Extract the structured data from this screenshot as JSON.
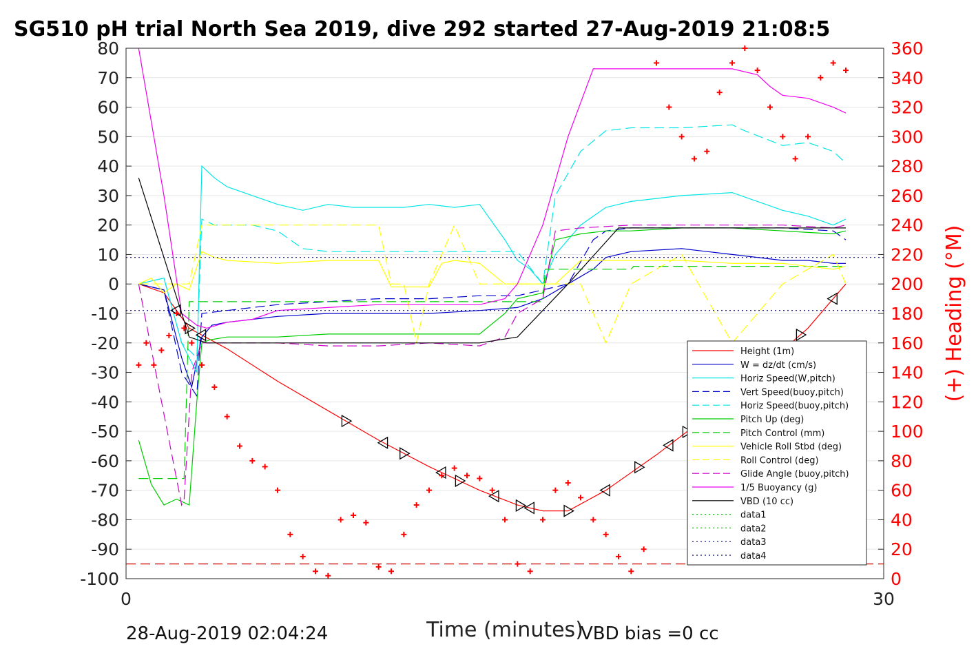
{
  "title": "SG510 pH trial North Sea 2019, dive 292 started 27-Aug-2019 21:08:5",
  "footer_left": "28-Aug-2019 02:04:24",
  "footer_right": "VBD bias =0 cc",
  "colors": {
    "height": "#ff0000",
    "w": "#0000cc",
    "hspeed_w": "#00e5e5",
    "vert_buoy": "#0000cc",
    "hspeed_buoy": "#00e5e5",
    "pitch": "#00cc00",
    "pitch_ctl": "#00cc00",
    "roll": "#ffff00",
    "roll_ctl": "#ffff00",
    "glide": "#cc00cc",
    "buoy": "#ee00ee",
    "vbd": "#000000",
    "heading": "#ff0000",
    "data12": "#00cc00",
    "data34": "#000080"
  },
  "chart_data": {
    "type": "line",
    "title": "SG510 pH trial North Sea 2019, dive 292 started 27-Aug-2019 21:08:5",
    "xlabel": "Time (minutes)",
    "ylabel": "",
    "ylabel_right": "(+) Heading (°M)",
    "xlim": [
      0,
      30
    ],
    "ylim": [
      -100,
      80
    ],
    "ylim_right": [
      0,
      360
    ],
    "x_ticks": [
      "0",
      "30"
    ],
    "y_ticks": [
      "80",
      "70",
      "60",
      "50",
      "40",
      "30",
      "20",
      "10",
      "0",
      "-10",
      "-20",
      "-30",
      "-40",
      "-50",
      "-60",
      "-70",
      "-80",
      "-90",
      "-100"
    ],
    "y_ticks_right": [
      "360",
      "340",
      "320",
      "300",
      "280",
      "260",
      "240",
      "220",
      "200",
      "180",
      "160",
      "140",
      "120",
      "100",
      "80",
      "60",
      "40",
      "20",
      "0"
    ],
    "grid": "horizontal",
    "legend_position": "lower-right",
    "series": [
      {
        "name": "Height (1m)",
        "style": "solid",
        "color": "#ff0000",
        "x": [
          0.5,
          1.5,
          2.5,
          4,
          6,
          8,
          10,
          12,
          14,
          15.5,
          16.5,
          17.5,
          19,
          21,
          23,
          25,
          27,
          28.5
        ],
        "y": [
          0,
          -3,
          -15,
          -22,
          -33,
          -43,
          -53,
          -62,
          -70,
          -75,
          -77,
          -77,
          -70,
          -58,
          -45,
          -30,
          -15,
          0
        ]
      },
      {
        "name": "W = dz/dt (cm/s)",
        "style": "solid",
        "color": "#0000cc",
        "x": [
          0.5,
          1.5,
          2.2,
          2.6,
          3,
          3.4,
          4,
          6,
          8,
          10,
          12,
          14,
          15.5,
          16.5,
          17.5,
          18.5,
          19,
          20,
          22,
          24,
          26,
          27,
          28,
          28.5
        ],
        "y": [
          0,
          -2,
          -25,
          -35,
          -18,
          -14,
          -13,
          -11,
          -10,
          -10,
          -10,
          -9,
          -8,
          -5,
          0,
          5,
          9,
          11,
          12,
          10,
          8,
          8,
          7,
          7
        ]
      },
      {
        "name": "Horiz Speed(W,pitch)",
        "style": "solid",
        "color": "#00e5e5",
        "x": [
          0.5,
          1.5,
          2.2,
          2.8,
          3,
          3.5,
          4,
          5,
          6,
          7,
          8,
          9,
          10,
          11,
          12,
          13,
          14,
          15,
          15.5,
          16,
          16.5,
          17,
          18,
          19,
          20,
          22,
          24,
          26,
          27,
          28,
          28.5
        ],
        "y": [
          0,
          2,
          -20,
          -30,
          40,
          36,
          33,
          30,
          27,
          25,
          27,
          26,
          26,
          26,
          27,
          26,
          27,
          15,
          8,
          5,
          0,
          10,
          20,
          26,
          28,
          30,
          31,
          25,
          23,
          20,
          22
        ]
      },
      {
        "name": "Vert Speed(buoy,pitch)",
        "style": "dashed",
        "color": "#0000cc",
        "x": [
          0.5,
          1.5,
          2.2,
          2.8,
          3,
          4,
          6,
          8,
          10,
          12,
          14,
          15.5,
          16.5,
          17.5,
          18.5,
          19,
          20,
          22,
          24,
          26,
          28,
          28.5
        ],
        "y": [
          0,
          -2,
          -30,
          -38,
          -10,
          -9,
          -7,
          -6,
          -5,
          -5,
          -4,
          -4,
          -2,
          0,
          15,
          18,
          19,
          19,
          19,
          19,
          18,
          15
        ]
      },
      {
        "name": "Horiz Speed(buoy,pitch)",
        "style": "dashed",
        "color": "#00e5e5",
        "x": [
          0.5,
          1.5,
          2.2,
          2.8,
          3,
          3.5,
          5,
          6,
          7,
          8,
          10,
          12,
          14,
          15.5,
          16.5,
          17,
          18,
          19,
          20,
          22,
          24,
          24.5,
          26,
          27,
          28,
          28.5
        ],
        "y": [
          0,
          2,
          -20,
          -25,
          22,
          20,
          20,
          18,
          12,
          11,
          11,
          11,
          11,
          11,
          0,
          30,
          45,
          52,
          53,
          53,
          54,
          52,
          47,
          48,
          45,
          41
        ]
      },
      {
        "name": "Pitch Up (deg)",
        "style": "solid",
        "color": "#00cc00",
        "x": [
          0.5,
          1,
          1.5,
          2,
          2.5,
          2.8,
          3,
          3.3,
          4,
          6,
          8,
          10,
          12,
          14,
          15,
          15.5,
          16.5,
          17,
          18,
          19,
          20,
          22,
          24,
          26,
          28,
          28.5
        ],
        "y": [
          -53,
          -68,
          -75,
          -73,
          -75,
          -40,
          -20,
          -19,
          -18,
          -18,
          -17,
          -17,
          -17,
          -17,
          -10,
          -5,
          -3,
          15,
          17,
          18,
          18,
          19,
          19,
          18,
          17,
          18
        ]
      },
      {
        "name": "Pitch Control (mm)",
        "style": "dashed",
        "color": "#00cc00",
        "x": [
          0.5,
          2.3,
          2.5,
          3,
          16.5,
          16.6,
          20,
          20.1,
          28.5
        ],
        "y": [
          -66,
          -66,
          -6,
          -6,
          -6,
          5,
          5,
          6,
          6
        ]
      },
      {
        "name": "Vehicle Roll Stbd (deg)",
        "style": "solid",
        "color": "#ffff00",
        "x": [
          0.5,
          1,
          1.5,
          2,
          2.5,
          3,
          3.5,
          4,
          6,
          8,
          10,
          10.5,
          11,
          12,
          12.5,
          13,
          14,
          15,
          16,
          17,
          18,
          19,
          20,
          22,
          24,
          26,
          28,
          28.5
        ],
        "y": [
          0,
          2,
          -3,
          0,
          -2,
          11,
          9,
          8,
          7,
          8,
          8,
          -1,
          -1,
          -1,
          7,
          8,
          7,
          0,
          0,
          0,
          8,
          8,
          8,
          8,
          7,
          7,
          5,
          6
        ]
      },
      {
        "name": "Roll Control (deg)",
        "style": "dashed",
        "color": "#ffff00",
        "x": [
          0.5,
          2.5,
          3,
          5,
          6,
          8,
          10,
          10.5,
          11,
          11.5,
          12,
          13,
          14,
          15,
          16,
          17,
          18,
          19,
          20,
          22,
          24,
          26,
          28,
          28.5
        ],
        "y": [
          0,
          0,
          20,
          20,
          20,
          20,
          20,
          0,
          0,
          -20,
          0,
          20,
          0,
          0,
          0,
          0,
          0,
          -20,
          0,
          10,
          -20,
          0,
          10,
          0
        ]
      },
      {
        "name": "Glide Angle (buoy,pitch)",
        "style": "dashed",
        "color": "#cc00cc",
        "x": [
          0.5,
          2.2,
          2.3,
          2.6,
          3,
          3.5,
          4,
          6,
          8,
          10,
          12,
          14,
          15,
          15.5,
          16.5,
          17,
          18,
          20,
          22,
          24,
          26,
          28,
          28.5
        ],
        "y": [
          0,
          -75,
          -73,
          -30,
          -20,
          -20,
          -20,
          -20,
          -21,
          -21,
          -20,
          -21,
          -18,
          -10,
          -5,
          18,
          19,
          20,
          20,
          20,
          20,
          19,
          20
        ]
      },
      {
        "name": "1/5 Buoyancy (g)",
        "style": "solid",
        "color": "#ee00ee",
        "x": [
          0.5,
          1,
          1.5,
          2.2,
          2.8,
          3.2,
          4,
          5,
          6,
          8,
          10,
          12,
          14,
          15,
          15.5,
          16.5,
          17.5,
          18.5,
          19,
          20,
          21,
          22,
          24,
          25,
          25.5,
          26,
          27,
          28,
          28.5
        ],
        "y": [
          80,
          55,
          30,
          -10,
          -14,
          -15,
          -13,
          -12,
          -9,
          -8,
          -7,
          -7,
          -7,
          -5,
          0,
          20,
          50,
          73,
          73,
          73,
          73,
          73,
          73,
          71,
          67,
          64,
          63,
          60,
          58
        ]
      },
      {
        "name": "VBD (10 cc)",
        "style": "solid",
        "color": "#000000",
        "x": [
          0.5,
          2.5,
          3.2,
          8,
          14,
          15.5,
          17.5,
          19.5,
          28.5
        ],
        "y": [
          36,
          -18,
          -20,
          -20,
          -20,
          -18,
          0,
          19,
          19
        ]
      },
      {
        "name": "data1",
        "style": "dotted",
        "color": "#00cc00",
        "x": [],
        "y": []
      },
      {
        "name": "data2",
        "style": "dotted",
        "color": "#00cc00",
        "x": [],
        "y": []
      },
      {
        "name": "data3",
        "style": "dotted",
        "color": "#000080",
        "x": [
          0,
          30
        ],
        "y": [
          9,
          9
        ]
      },
      {
        "name": "data4",
        "style": "dotted",
        "color": "#000080",
        "x": [
          0,
          30
        ],
        "y": [
          -9,
          -9
        ]
      },
      {
        "name": "",
        "style": "dashed",
        "color": "#cc0000",
        "x": [
          0,
          30
        ],
        "y": [
          -95,
          -95
        ]
      }
    ],
    "heading": {
      "axis": "right",
      "marker": "+",
      "color": "#ff0000",
      "x": [
        0.5,
        0.8,
        1.1,
        1.4,
        1.7,
        2.0,
        2.3,
        2.6,
        3.0,
        3.5,
        4.0,
        4.5,
        5.0,
        5.5,
        6.0,
        6.5,
        7.0,
        7.5,
        8.0,
        8.5,
        9.0,
        9.5,
        10.0,
        10.5,
        11.0,
        11.5,
        12.0,
        12.5,
        13.0,
        13.5,
        14.0,
        14.5,
        15.0,
        15.5,
        16.0,
        16.5,
        17.0,
        17.5,
        18.0,
        18.5,
        19.0,
        19.5,
        20.0,
        20.5,
        21.0,
        21.5,
        22.0,
        22.5,
        23.0,
        23.5,
        24.0,
        24.5,
        25.0,
        25.5,
        26.0,
        26.5,
        27.0,
        27.5,
        28.0,
        28.5
      ],
      "y": [
        145,
        160,
        145,
        155,
        165,
        180,
        170,
        160,
        145,
        130,
        110,
        90,
        80,
        76,
        60,
        30,
        15,
        5,
        2,
        40,
        43,
        38,
        8,
        5,
        30,
        50,
        60,
        70,
        75,
        70,
        68,
        60,
        40,
        10,
        5,
        40,
        60,
        65,
        55,
        40,
        30,
        15,
        5,
        20,
        350,
        320,
        300,
        285,
        290,
        330,
        350,
        360,
        345,
        320,
        300,
        285,
        300,
        340,
        350,
        345
      ]
    },
    "annotations": [
      {
        "text": "turn markers (triangles) along Height trace"
      }
    ]
  }
}
